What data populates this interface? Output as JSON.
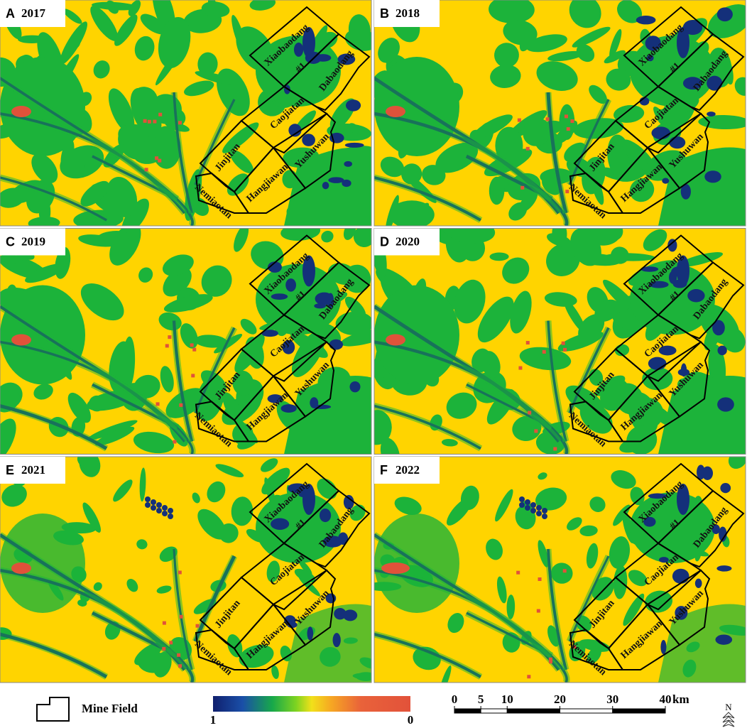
{
  "panels": [
    {
      "letter": "A",
      "year": "2017"
    },
    {
      "letter": "B",
      "year": "2018"
    },
    {
      "letter": "C",
      "year": "2019"
    },
    {
      "letter": "D",
      "year": "2020"
    },
    {
      "letter": "E",
      "year": "2021"
    },
    {
      "letter": "F",
      "year": "2022"
    }
  ],
  "mine_fields": [
    "Xiaobaodang",
    "#1",
    "Dabaodang",
    "Caojiatan",
    "Yushuwan",
    "Jinjitan",
    "Hangjiawan",
    "Nemiaotan"
  ],
  "legend": {
    "mine_field": "Mine Field",
    "colorbar_max": "1",
    "colorbar_min": "0"
  },
  "scale_bar": {
    "ticks": [
      0,
      5,
      10,
      20,
      30,
      40
    ],
    "unit": "km"
  },
  "north": "N"
}
